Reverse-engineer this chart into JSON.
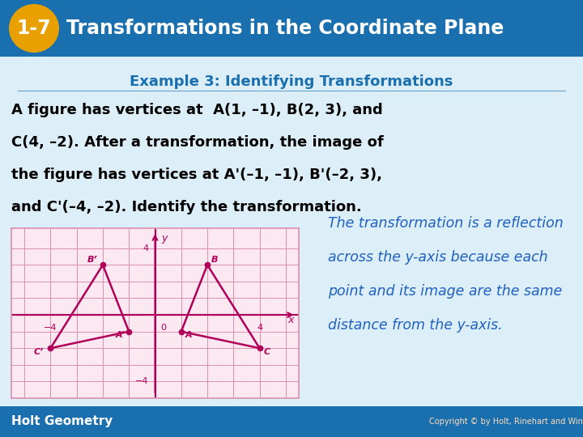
{
  "header_bg_color": "#1a6faf",
  "header_text": "Transformations in the Coordinate Plane",
  "header_badge_bg": "#e8a000",
  "header_badge_text": "1-7",
  "slide_bg_color": "#dceef8",
  "example_title": "Example 3: Identifying Transformations",
  "example_title_color": "#1a6faf",
  "body_lines": [
    "A figure has vertices at  A(1, –1), B(2, 3), and",
    "C(4, –2). After a transformation, the image of",
    "the figure has vertices at A'(–1, –1), B'(–2, 3),",
    "and C'(–4, –2). Identify the transformation."
  ],
  "italic_lines": [
    "The transformation is a reflection",
    "across the y-axis because each",
    "point and its image are the same",
    "distance from the y-axis."
  ],
  "italic_color": "#2060c0",
  "footer_text": "Holt Geometry",
  "footer_bg": "#1a6faf",
  "footer_copyright": "Copyright © by Holt, Rinehart and Winston. All Rights Reserved.",
  "graph_bg": "#fce8f0",
  "graph_grid_color": "#d890b0",
  "graph_axis_color": "#b0005a",
  "graph_line_color": "#b0005a",
  "points_original": [
    [
      1,
      -1
    ],
    [
      2,
      3
    ],
    [
      4,
      -2
    ]
  ],
  "points_image": [
    [
      -1,
      -1
    ],
    [
      -2,
      3
    ],
    [
      -4,
      -2
    ]
  ],
  "point_labels_original": [
    "A",
    "B",
    "C"
  ],
  "point_labels_image": [
    "A’",
    "B’",
    "C’"
  ],
  "graph_xlim": [
    -5.5,
    5.5
  ],
  "graph_ylim": [
    -5.0,
    5.2
  ]
}
